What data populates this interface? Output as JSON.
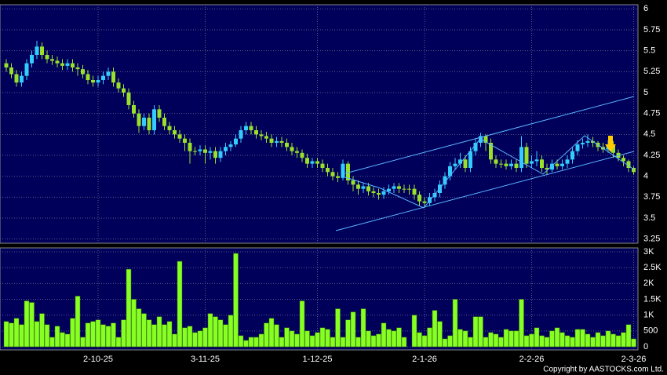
{
  "chart_data": [
    {
      "type": "candlestick",
      "up_color": "#33ccff",
      "down_color": "#99e02a",
      "grid": true,
      "ylim": [
        3.2,
        6.05
      ],
      "yticks": [
        3.25,
        3.5,
        3.75,
        4,
        4.25,
        4.5,
        4.75,
        5,
        5.25,
        5.5,
        5.75,
        6
      ],
      "open": [
        5.35,
        5.3,
        5.22,
        5.12,
        5.2,
        5.35,
        5.45,
        5.55,
        5.45,
        5.4,
        5.38,
        5.35,
        5.32,
        5.35,
        5.3,
        5.28,
        5.22,
        5.15,
        5.12,
        5.15,
        5.2,
        5.25,
        5.12,
        5.05,
        5.0,
        4.85,
        4.75,
        4.6,
        4.7,
        4.55,
        4.8,
        4.7,
        4.6,
        4.55,
        4.5,
        4.45,
        4.4,
        4.3,
        4.3,
        4.32,
        4.28,
        4.3,
        4.22,
        4.3,
        4.35,
        4.38,
        4.45,
        4.55,
        4.6,
        4.55,
        4.5,
        4.48,
        4.45,
        4.4,
        4.42,
        4.4,
        4.35,
        4.3,
        4.28,
        4.22,
        4.15,
        4.18,
        4.15,
        4.1,
        4.05,
        4.0,
        3.98,
        4.15,
        3.95,
        3.9,
        3.85,
        3.88,
        3.82,
        3.8,
        3.78,
        3.82,
        3.85,
        3.88,
        3.85,
        3.85,
        3.85,
        3.78,
        3.7,
        3.68,
        3.75,
        3.8,
        3.9,
        4.0,
        4.12,
        4.15,
        4.2,
        4.1,
        4.3,
        4.4,
        4.48,
        4.4,
        4.2,
        4.15,
        4.15,
        4.12,
        4.15,
        4.1,
        4.35,
        4.15,
        4.18,
        4.2,
        4.1,
        4.08,
        4.15,
        4.12,
        4.15,
        4.2,
        4.3,
        4.38,
        4.4,
        4.42,
        4.4,
        4.35,
        4.32,
        4.38,
        4.28,
        4.22,
        4.18,
        4.1
      ],
      "high": [
        5.4,
        5.35,
        5.27,
        5.25,
        5.4,
        5.5,
        5.62,
        5.6,
        5.5,
        5.45,
        5.43,
        5.4,
        5.4,
        5.4,
        5.35,
        5.33,
        5.27,
        5.2,
        5.2,
        5.25,
        5.3,
        5.3,
        5.17,
        5.1,
        5.05,
        4.9,
        4.8,
        4.75,
        4.75,
        4.85,
        4.85,
        4.75,
        4.65,
        4.6,
        4.55,
        4.5,
        4.45,
        4.35,
        4.37,
        4.37,
        4.35,
        4.35,
        4.35,
        4.4,
        4.42,
        4.5,
        4.6,
        4.65,
        4.65,
        4.6,
        4.55,
        4.53,
        4.5,
        4.47,
        4.47,
        4.45,
        4.4,
        4.35,
        4.32,
        4.27,
        4.22,
        4.22,
        4.2,
        4.15,
        4.1,
        4.05,
        4.2,
        4.18,
        4.0,
        3.95,
        3.92,
        3.92,
        3.87,
        3.85,
        3.87,
        3.9,
        3.92,
        3.92,
        3.9,
        3.9,
        3.9,
        3.82,
        3.75,
        3.8,
        3.85,
        3.95,
        4.05,
        4.17,
        4.22,
        4.28,
        4.25,
        4.35,
        4.45,
        4.52,
        4.5,
        4.45,
        4.25,
        4.2,
        4.2,
        4.2,
        4.2,
        4.48,
        4.4,
        4.25,
        4.3,
        4.25,
        4.15,
        4.2,
        4.2,
        4.2,
        4.25,
        4.35,
        4.43,
        4.45,
        4.5,
        4.47,
        4.42,
        4.4,
        4.43,
        4.42,
        4.32,
        4.25,
        4.2,
        4.12
      ],
      "low": [
        5.25,
        5.17,
        5.07,
        5.07,
        5.15,
        5.3,
        5.4,
        5.4,
        5.35,
        5.33,
        5.3,
        5.27,
        5.27,
        5.25,
        5.2,
        5.17,
        5.1,
        5.07,
        5.07,
        5.1,
        5.15,
        5.07,
        5.0,
        4.95,
        4.8,
        4.7,
        4.52,
        4.55,
        4.5,
        4.5,
        4.65,
        4.55,
        4.5,
        4.45,
        4.4,
        4.3,
        4.15,
        4.25,
        4.25,
        4.15,
        4.2,
        4.15,
        4.17,
        4.25,
        4.3,
        4.35,
        4.4,
        4.5,
        4.5,
        4.45,
        4.43,
        4.4,
        4.35,
        4.35,
        4.35,
        4.3,
        4.25,
        4.22,
        4.17,
        4.1,
        4.1,
        4.1,
        4.05,
        4.0,
        3.95,
        3.93,
        3.95,
        3.9,
        3.82,
        3.78,
        3.8,
        3.77,
        3.75,
        3.72,
        3.73,
        3.78,
        3.8,
        3.8,
        3.8,
        3.78,
        3.72,
        3.65,
        3.63,
        3.65,
        3.7,
        3.75,
        3.85,
        3.95,
        4.08,
        4.1,
        4.05,
        4.05,
        4.25,
        4.35,
        4.3,
        4.15,
        4.1,
        4.1,
        4.08,
        4.08,
        4.05,
        4.05,
        4.1,
        4.1,
        4.12,
        4.05,
        4.02,
        4.05,
        4.08,
        4.08,
        4.1,
        4.15,
        4.25,
        4.33,
        4.35,
        4.35,
        4.3,
        4.28,
        4.28,
        4.22,
        4.18,
        4.12,
        4.05,
        4.02
      ],
      "close": [
        5.3,
        5.22,
        5.12,
        5.2,
        5.35,
        5.45,
        5.55,
        5.45,
        5.4,
        5.38,
        5.35,
        5.32,
        5.35,
        5.3,
        5.28,
        5.22,
        5.15,
        5.12,
        5.15,
        5.2,
        5.25,
        5.12,
        5.05,
        5.0,
        4.85,
        4.75,
        4.6,
        4.7,
        4.55,
        4.8,
        4.7,
        4.6,
        4.55,
        4.5,
        4.45,
        4.4,
        4.3,
        4.3,
        4.32,
        4.28,
        4.3,
        4.22,
        4.3,
        4.35,
        4.38,
        4.45,
        4.55,
        4.6,
        4.55,
        4.5,
        4.48,
        4.45,
        4.4,
        4.42,
        4.4,
        4.35,
        4.3,
        4.28,
        4.22,
        4.15,
        4.18,
        4.15,
        4.1,
        4.05,
        4.0,
        3.98,
        4.15,
        3.95,
        3.9,
        3.85,
        3.88,
        3.82,
        3.8,
        3.78,
        3.82,
        3.85,
        3.88,
        3.85,
        3.85,
        3.85,
        3.78,
        3.7,
        3.68,
        3.75,
        3.8,
        3.9,
        4.0,
        4.12,
        4.15,
        4.2,
        4.1,
        4.3,
        4.4,
        4.48,
        4.4,
        4.2,
        4.15,
        4.15,
        4.12,
        4.15,
        4.1,
        4.35,
        4.15,
        4.18,
        4.2,
        4.1,
        4.08,
        4.15,
        4.12,
        4.15,
        4.2,
        4.3,
        4.38,
        4.4,
        4.42,
        4.4,
        4.35,
        4.32,
        4.38,
        4.28,
        4.22,
        4.18,
        4.1,
        4.05
      ]
    },
    {
      "type": "bar",
      "color": "#88ff22",
      "grid": true,
      "ylim": [
        0,
        3000
      ],
      "yticks": [
        0,
        500,
        {
          "value": 1000,
          "label": "1K"
        },
        {
          "value": 1500,
          "label": "1.5K"
        },
        {
          "value": 2000,
          "label": "2K"
        },
        {
          "value": 2500,
          "label": "2.5K"
        },
        {
          "value": 3000,
          "label": "3K"
        }
      ],
      "categories": [
        null,
        null,
        null,
        null,
        null,
        null,
        null,
        null,
        null,
        null,
        null,
        null,
        null,
        null,
        null,
        null,
        null,
        null,
        "2-10-25",
        null,
        null,
        null,
        null,
        null,
        null,
        null,
        null,
        null,
        null,
        null,
        null,
        null,
        null,
        null,
        null,
        null,
        null,
        null,
        null,
        "3-11-25",
        null,
        null,
        null,
        null,
        null,
        null,
        null,
        null,
        null,
        null,
        null,
        null,
        null,
        null,
        null,
        null,
        null,
        null,
        null,
        null,
        null,
        "1-12-25",
        null,
        null,
        null,
        null,
        null,
        null,
        null,
        null,
        null,
        null,
        null,
        null,
        null,
        null,
        null,
        null,
        null,
        null,
        null,
        null,
        "2-1-26",
        null,
        null,
        null,
        null,
        null,
        null,
        null,
        null,
        null,
        null,
        null,
        null,
        null,
        null,
        null,
        null,
        null,
        null,
        null,
        null,
        "2-2-26",
        null,
        null,
        null,
        null,
        null,
        null,
        null,
        null,
        null,
        null,
        null,
        null,
        null,
        null,
        null,
        null,
        null,
        null,
        null,
        "2-3-26"
      ],
      "values": [
        800,
        750,
        900,
        700,
        1450,
        1400,
        800,
        1050,
        700,
        300,
        650,
        450,
        400,
        900,
        1600,
        300,
        750,
        800,
        850,
        700,
        650,
        750,
        300,
        850,
        2450,
        1500,
        1200,
        1050,
        850,
        700,
        950,
        700,
        800,
        400,
        2700,
        600,
        650,
        450,
        500,
        600,
        1050,
        950,
        850,
        700,
        1000,
        2950,
        350,
        200,
        300,
        300,
        400,
        750,
        900,
        700,
        300,
        600,
        500,
        400,
        1450,
        500,
        350,
        450,
        600,
        550,
        300,
        1200,
        300,
        850,
        1100,
        300,
        1200,
        500,
        350,
        400,
        750,
        550,
        500,
        600,
        300,
        0,
        1000,
        450,
        350,
        600,
        1150,
        800,
        250,
        350,
        1500,
        550,
        500,
        300,
        950,
        950,
        300,
        450,
        400,
        300,
        550,
        500,
        500,
        1500,
        350,
        400,
        600,
        350,
        300,
        500,
        600,
        450,
        350,
        300,
        550,
        550,
        400,
        300,
        450,
        350,
        500,
        400,
        350,
        450,
        700,
        250
      ]
    }
  ],
  "footer": "Copyright by AASTOCKS.com Ltd."
}
